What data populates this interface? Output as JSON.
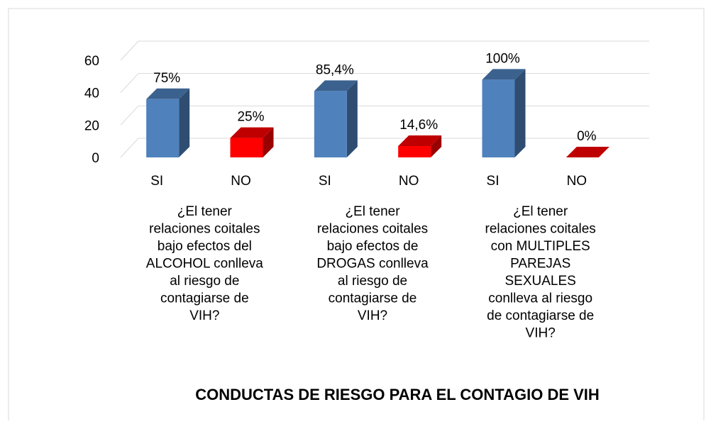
{
  "chart_data": {
    "type": "bar3d",
    "title": "CONDUCTAS DE RIESGO PARA EL CONTAGIO DE VIH",
    "categories": [
      "SI",
      "NO",
      "SI",
      "NO",
      "SI",
      "NO"
    ],
    "groups": [
      [
        "¿El tener",
        "relaciones coitales",
        "bajo efectos del",
        "ALCOHOL conlleva",
        "al riesgo de",
        "contagiarse de",
        "VIH?"
      ],
      [
        "¿El tener",
        "relaciones coitales",
        "bajo efectos de",
        "DROGAS conlleva",
        "al riesgo de",
        "contagiarse de",
        "VIH?"
      ],
      [
        "¿El tener",
        "relaciones coitales",
        "con MULTIPLES",
        "PAREJAS",
        "SEXUALES",
        "conlleva al riesgo",
        "de contagiarse de",
        "VIH?"
      ]
    ],
    "values": [
      36,
      12,
      41,
      7,
      48,
      0
    ],
    "value_labels": [
      "75%",
      "25%",
      "85,4%",
      "14,6%",
      "100%",
      "0%"
    ],
    "colors": [
      "#4f81bd",
      "#ff0000",
      "#4f81bd",
      "#ff0000",
      "#4f81bd",
      "#ff0000"
    ],
    "ylim": [
      0,
      60
    ],
    "yticks": [
      0,
      20,
      40,
      60
    ],
    "grid": true
  }
}
